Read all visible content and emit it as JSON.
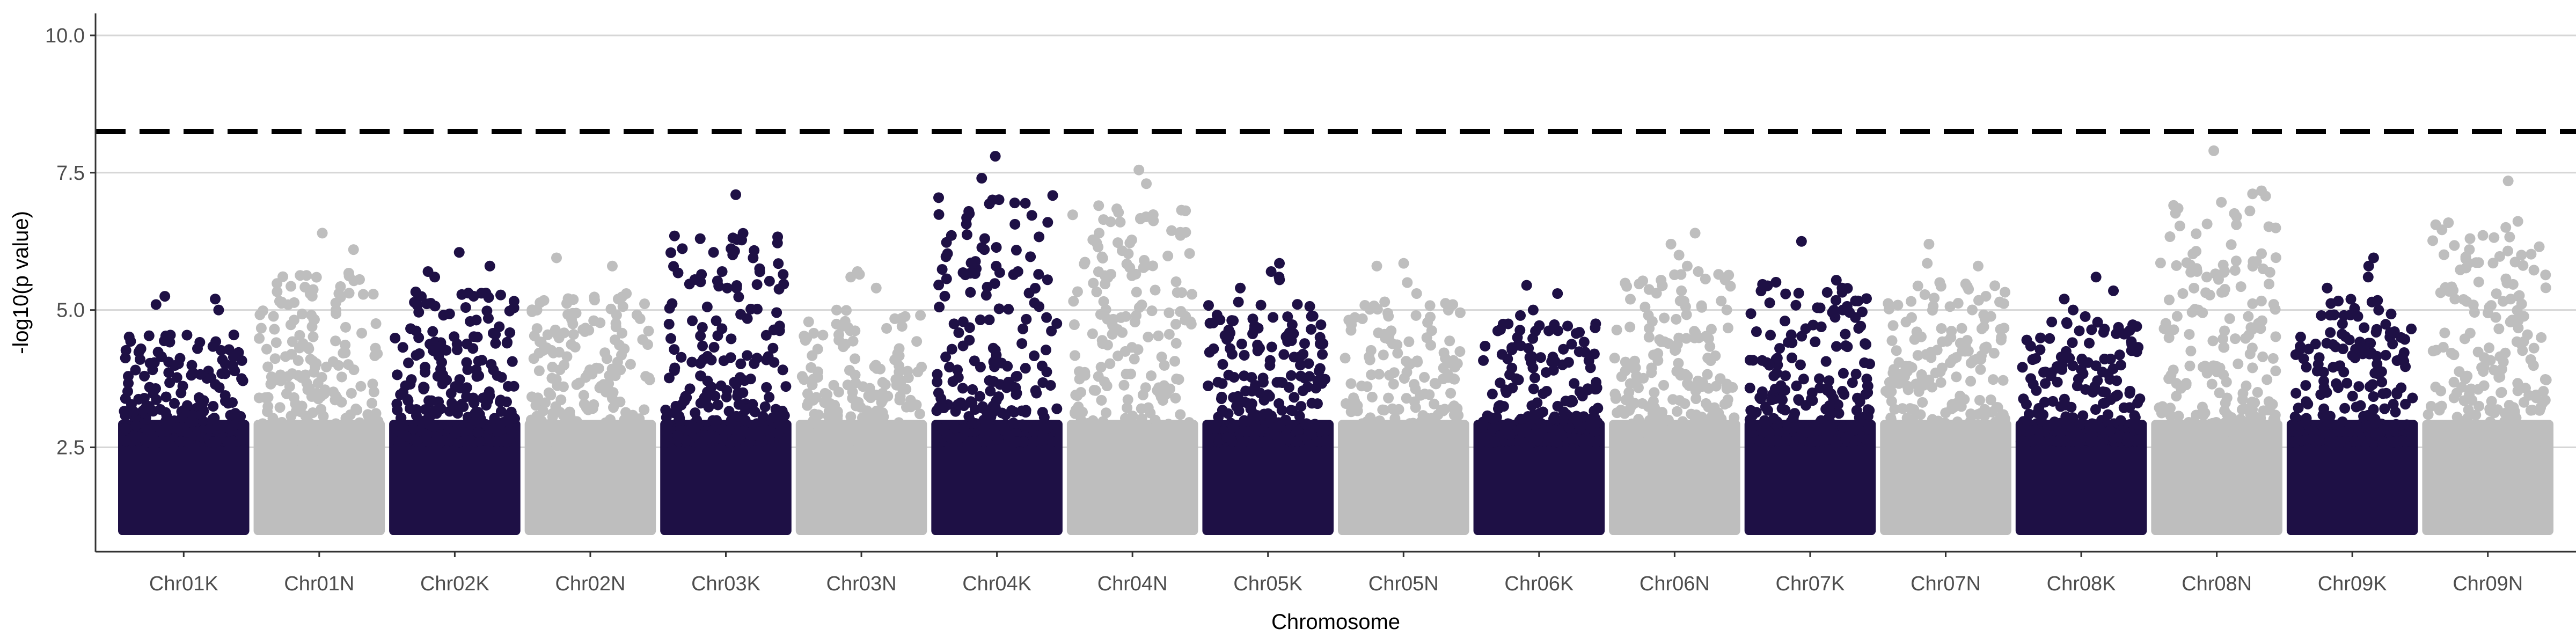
{
  "chart_data": {
    "type": "scatter",
    "subtype": "manhattan",
    "title": "",
    "xlabel": "Chromosome",
    "ylabel": "-log10(p value)",
    "ylim": [
      0.6,
      10.4
    ],
    "yticks": [
      2.5,
      5.0,
      7.5,
      10.0
    ],
    "ytick_labels": [
      "2.5",
      "5.0",
      "7.5",
      "10.0"
    ],
    "grid": "horizontal major gridlines",
    "legend": "none",
    "threshold": {
      "value": 8.25,
      "style": "dashed",
      "color": "#000000"
    },
    "categories": [
      "Chr01K",
      "Chr01N",
      "Chr02K",
      "Chr02N",
      "Chr03K",
      "Chr03N",
      "Chr04K",
      "Chr04N",
      "Chr05K",
      "Chr05N",
      "Chr06K",
      "Chr06N",
      "Chr07K",
      "Chr07N",
      "Chr08K",
      "Chr08N",
      "Chr09K",
      "Chr09N"
    ],
    "colors": {
      "K": "#1e1045",
      "N": "#bebebe"
    },
    "min_value": 1.0,
    "series": [
      {
        "chromosome": "Chr01K",
        "max_value": 5.25,
        "peaks": [
          5.1,
          5.0,
          5.25,
          5.2
        ]
      },
      {
        "chromosome": "Chr01N",
        "max_value": 6.4,
        "peaks": [
          6.4,
          6.1,
          5.3,
          5.0
        ]
      },
      {
        "chromosome": "Chr02K",
        "max_value": 6.05,
        "peaks": [
          6.05,
          5.8,
          5.7,
          5.6
        ]
      },
      {
        "chromosome": "Chr02N",
        "max_value": 5.95,
        "peaks": [
          5.95,
          5.8,
          5.3,
          5.2
        ]
      },
      {
        "chromosome": "Chr03K",
        "max_value": 7.1,
        "peaks": [
          7.1,
          5.7,
          5.4,
          5.4
        ]
      },
      {
        "chromosome": "Chr03N",
        "max_value": 5.7,
        "peaks": [
          5.7,
          5.65,
          5.6,
          5.4
        ]
      },
      {
        "chromosome": "Chr04K",
        "max_value": 7.8,
        "peaks": [
          7.8,
          7.4,
          6.95,
          6.3,
          6.1,
          5.7
        ]
      },
      {
        "chromosome": "Chr04N",
        "max_value": 7.55,
        "peaks": [
          7.55,
          7.3,
          6.9,
          6.6,
          6.4
        ]
      },
      {
        "chromosome": "Chr05K",
        "max_value": 5.85,
        "peaks": [
          5.85,
          5.7,
          5.6,
          5.55,
          5.4
        ]
      },
      {
        "chromosome": "Chr05N",
        "max_value": 5.85,
        "peaks": [
          5.85,
          5.8,
          5.5,
          5.3
        ]
      },
      {
        "chromosome": "Chr06K",
        "max_value": 5.45,
        "peaks": [
          5.45,
          5.3,
          5.0,
          4.9
        ]
      },
      {
        "chromosome": "Chr06N",
        "max_value": 6.4,
        "peaks": [
          6.4,
          6.2,
          6.0,
          5.8,
          5.7
        ]
      },
      {
        "chromosome": "Chr07K",
        "max_value": 6.25,
        "peaks": [
          6.25,
          5.4,
          5.0,
          4.8
        ]
      },
      {
        "chromosome": "Chr07N",
        "max_value": 6.2,
        "peaks": [
          6.2,
          5.85,
          5.8,
          5.5
        ]
      },
      {
        "chromosome": "Chr08K",
        "max_value": 5.6,
        "peaks": [
          5.6,
          5.35,
          5.2,
          5.0
        ]
      },
      {
        "chromosome": "Chr08N",
        "max_value": 7.9,
        "peaks": [
          7.9,
          5.6,
          5.3,
          5.0
        ]
      },
      {
        "chromosome": "Chr09K",
        "max_value": 5.95,
        "peaks": [
          5.95,
          5.8,
          5.6,
          5.4
        ]
      },
      {
        "chromosome": "Chr09N",
        "max_value": 7.35,
        "peaks": [
          7.35,
          6.1,
          6.0,
          5.2
        ]
      }
    ]
  }
}
